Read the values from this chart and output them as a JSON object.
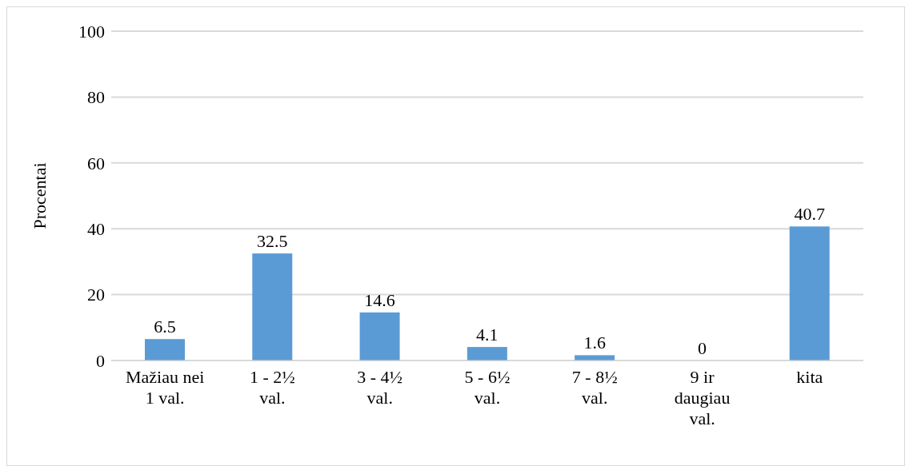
{
  "chart_data": {
    "type": "bar",
    "ylabel": "Procentai",
    "categories": [
      "Mažiau nei 1 val.",
      "1 - 2½ val.",
      "3 - 4½ val.",
      "5 - 6½ val.",
      "7 - 8½ val.",
      "9 ir daugiau val.",
      "kita"
    ],
    "values": [
      6.5,
      32.5,
      14.6,
      4.1,
      1.6,
      0,
      40.7
    ],
    "color": "#5b9bd5",
    "ylim": [
      0,
      100
    ],
    "yticks": [
      0,
      20,
      40,
      60,
      80,
      100
    ],
    "grid": "y",
    "data_labels": true,
    "legend": false
  }
}
